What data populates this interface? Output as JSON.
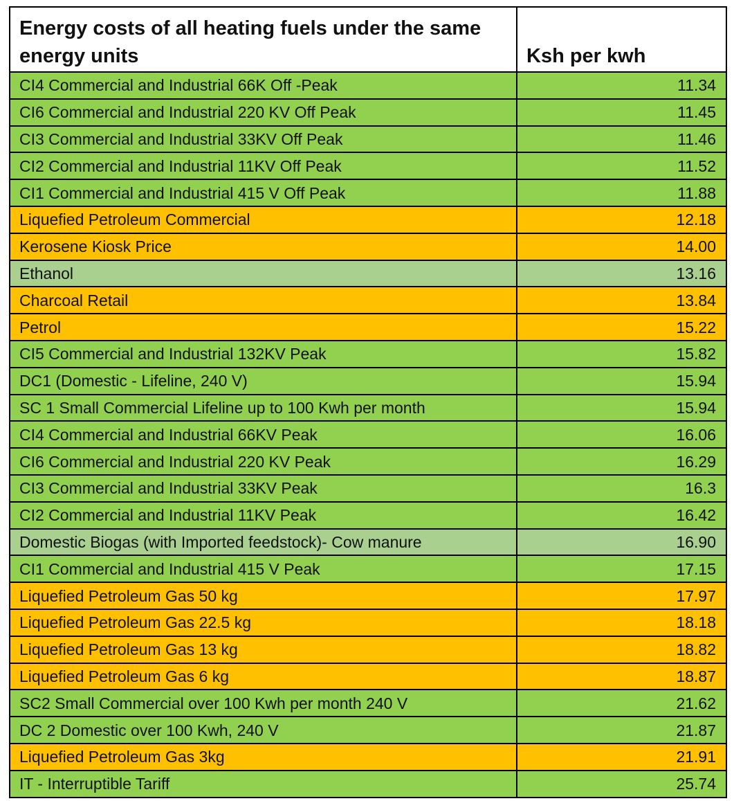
{
  "table": {
    "header": {
      "title": "Energy costs of all heating fuels under the same energy units",
      "unit": "Ksh per kwh"
    },
    "colors": {
      "green": "#92d050",
      "orange": "#ffc000",
      "light": "#a9d08e"
    },
    "rows": [
      {
        "label": "CI4 Commercial and Industrial 66K Off -Peak",
        "value": "11.34",
        "color": "green"
      },
      {
        "label": "CI6 Commercial and Industrial 220 KV  Off Peak",
        "value": "11.45",
        "color": "green"
      },
      {
        "label": "CI3 Commercial and Industrial 33KV Off Peak",
        "value": "11.46",
        "color": "green"
      },
      {
        "label": "CI2 Commercial and Industrial 11KV Off Peak",
        "value": "11.52",
        "color": "green"
      },
      {
        "label": "CI1 Commercial and Industrial 415 V Off Peak",
        "value": "11.88",
        "color": "green"
      },
      {
        "label": "Liquefied Petroleum Commercial",
        "value": "12.18",
        "color": "orange"
      },
      {
        "label": "Kerosene Kiosk Price",
        "value": "14.00",
        "color": "orange"
      },
      {
        "label": "Ethanol",
        "value": "13.16",
        "color": "light"
      },
      {
        "label": "Charcoal Retail",
        "value": "13.84",
        "color": "orange"
      },
      {
        "label": "Petrol",
        "value": "15.22",
        "color": "orange"
      },
      {
        "label": "CI5 Commercial and Industrial 132KV Peak",
        "value": "15.82",
        "color": "green"
      },
      {
        "label": "DC1 (Domestic - Lifeline, 240 V)",
        "value": "15.94",
        "color": "green"
      },
      {
        "label": "SC 1 Small Commercial Lifeline up to 100 Kwh per month",
        "value": "15.94",
        "color": "green"
      },
      {
        "label": "CI4 Commercial and Industrial 66KV Peak",
        "value": "16.06",
        "color": "green"
      },
      {
        "label": "CI6 Commercial and Industrial 220 KV Peak",
        "value": "16.29",
        "color": "green"
      },
      {
        "label": "CI3 Commercial and Industrial 33KV Peak",
        "value": "16.3",
        "color": "green"
      },
      {
        "label": "CI2 Commercial and Industrial 11KV Peak",
        "value": "16.42",
        "color": "green"
      },
      {
        "label": "Domestic Biogas (with Imported   feedstock)- Cow manure",
        "value": "16.90",
        "color": "light"
      },
      {
        "label": "CI1 Commercial and Industrial 415 V Peak",
        "value": "17.15",
        "color": "green"
      },
      {
        "label": "Liquefied Petroleum Gas 50 kg",
        "value": "17.97",
        "color": "orange"
      },
      {
        "label": "Liquefied Petroleum Gas 22.5 kg",
        "value": "18.18",
        "color": "orange"
      },
      {
        "label": "Liquefied Petroleum Gas 13 kg",
        "value": "18.82",
        "color": "orange"
      },
      {
        "label": "Liquefied Petroleum Gas 6 kg",
        "value": "18.87",
        "color": "orange"
      },
      {
        "label": "SC2 Small Commercial over 100 Kwh per month 240 V",
        "value": "21.62",
        "color": "green"
      },
      {
        "label": "DC 2 Domestic over 100 Kwh, 240 V",
        "value": "21.87",
        "color": "green"
      },
      {
        "label": "Liquefied Petroleum Gas 3kg",
        "value": "21.91",
        "color": "orange"
      },
      {
        "label": "IT - Interruptible Tariff",
        "value": "25.74",
        "color": "green"
      }
    ]
  }
}
